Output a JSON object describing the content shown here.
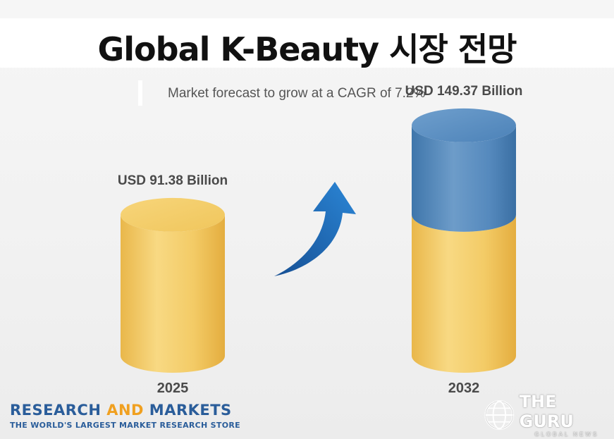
{
  "chart_data": {
    "type": "bar",
    "title": "Global K-Beauty 시장 전망",
    "subtitle": "Market forecast to grow at a CAGR of 7.2%",
    "categories": [
      "2025",
      "2032"
    ],
    "values": [
      91.38,
      149.37
    ],
    "value_labels": [
      "USD 91.38 Billion",
      "USD 149.37 Billion"
    ],
    "unit": "USD Billion",
    "colors": {
      "base": "#f2c55c",
      "growth": "#4f86bb",
      "arrow": "#1e6fbf"
    }
  },
  "branding": {
    "research_name_1": "RESEARCH ",
    "research_name_accent": "AND",
    "research_name_2": " MARKETS",
    "research_tagline": "THE WORLD'S LARGEST MARKET RESEARCH STORE",
    "watermark_name": "THE GURU",
    "watermark_sub": "GLOBAL NEWS"
  }
}
